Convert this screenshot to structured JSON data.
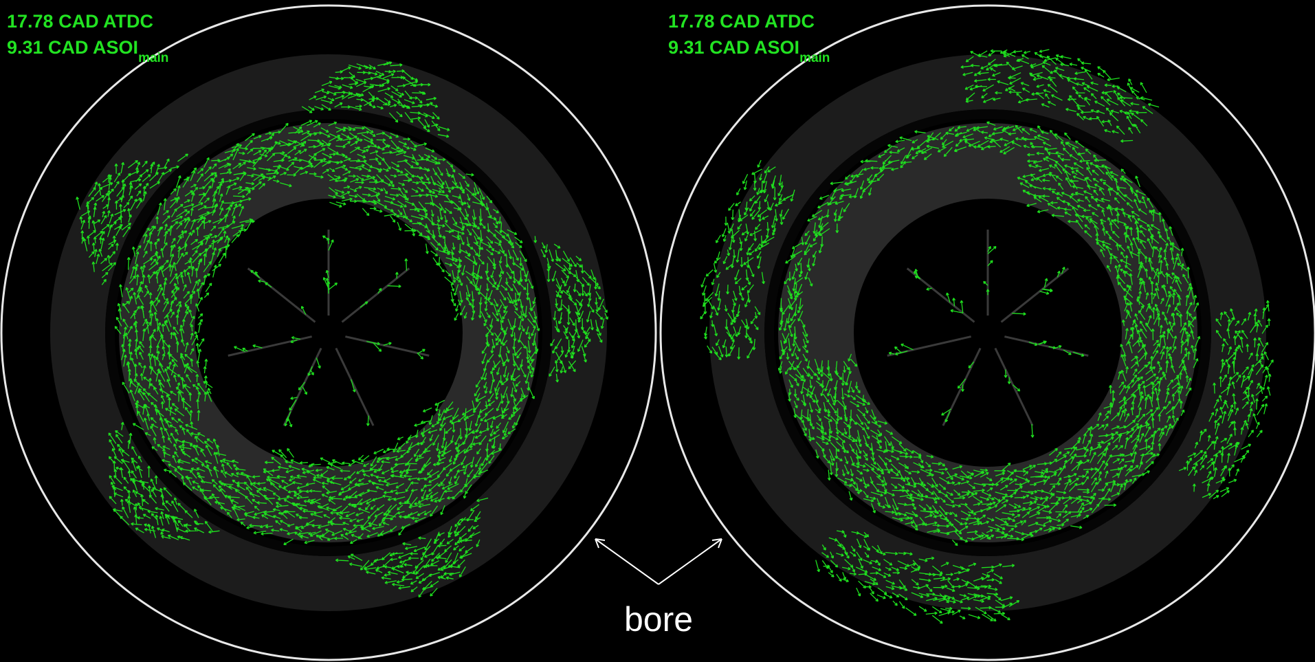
{
  "panels": [
    {
      "line1": "17.78 CAD ATDC",
      "line2": "9.31 CAD ASOI",
      "subscript": "main"
    },
    {
      "line1": "17.78 CAD ATDC",
      "line2": "9.31 CAD ASOI",
      "subscript": "main"
    }
  ],
  "annotation": "bore"
}
